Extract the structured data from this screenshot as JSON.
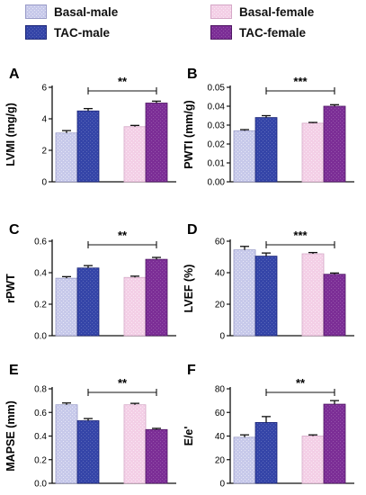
{
  "legend": {
    "items": [
      {
        "label": "Basal-male",
        "pattern": "basal-male"
      },
      {
        "label": "TAC-male",
        "pattern": "tac-male"
      },
      {
        "label": "Basal-female",
        "pattern": "basal-female"
      },
      {
        "label": "TAC-female",
        "pattern": "tac-female"
      }
    ]
  },
  "colors": {
    "basal_male": "#c7c9ea",
    "tac_male": "#3545a8",
    "basal_female": "#f3cfe6",
    "tac_female": "#7c2e96"
  },
  "chart_data": [
    {
      "panel": "A",
      "type": "bar",
      "ylabel": "LVMI (mg/g)",
      "ylim": [
        0,
        6
      ],
      "yticks": [
        "0",
        "2",
        "4",
        "6"
      ],
      "series": [
        "Basal-male",
        "TAC-male",
        "Basal-female",
        "TAC-female"
      ],
      "values": [
        3.1,
        4.5,
        3.5,
        5.0
      ],
      "errors": [
        0.15,
        0.15,
        0.08,
        0.12
      ],
      "significance": "**"
    },
    {
      "panel": "B",
      "type": "bar",
      "ylabel": "PWTI (mm/g)",
      "ylim": [
        0,
        0.05
      ],
      "yticks": [
        "0.00",
        "0.01",
        "0.02",
        "0.03",
        "0.04",
        "0.05"
      ],
      "series": [
        "Basal-male",
        "TAC-male",
        "Basal-female",
        "TAC-female"
      ],
      "values": [
        0.027,
        0.034,
        0.031,
        0.04
      ],
      "errors": [
        0.0006,
        0.001,
        0.0004,
        0.0008
      ],
      "significance": "***"
    },
    {
      "panel": "C",
      "type": "bar",
      "ylabel": "rPWT",
      "ylim": [
        0,
        0.6
      ],
      "yticks": [
        "0.0",
        "0.2",
        "0.4",
        "0.6"
      ],
      "series": [
        "Basal-male",
        "TAC-male",
        "Basal-female",
        "TAC-female"
      ],
      "values": [
        0.365,
        0.43,
        0.37,
        0.485
      ],
      "errors": [
        0.01,
        0.015,
        0.008,
        0.012
      ],
      "significance": "**"
    },
    {
      "panel": "D",
      "type": "bar",
      "ylabel": "LVEF (%)",
      "ylim": [
        0,
        60
      ],
      "yticks": [
        "0",
        "20",
        "40",
        "60"
      ],
      "series": [
        "Basal-male",
        "TAC-male",
        "Basal-female",
        "TAC-female"
      ],
      "values": [
        54.5,
        50.5,
        52.0,
        39.0
      ],
      "errors": [
        2.2,
        2.0,
        0.8,
        0.8
      ],
      "significance": "***"
    },
    {
      "panel": "E",
      "type": "bar",
      "ylabel": "MAPSE (mm)",
      "ylim": [
        0,
        0.8
      ],
      "yticks": [
        "0.0",
        "0.2",
        "0.4",
        "0.6",
        "0.8"
      ],
      "series": [
        "Basal-male",
        "TAC-male",
        "Basal-female",
        "TAC-female"
      ],
      "values": [
        0.665,
        0.53,
        0.665,
        0.455
      ],
      "errors": [
        0.015,
        0.018,
        0.012,
        0.01
      ],
      "significance": "**"
    },
    {
      "panel": "F",
      "type": "bar",
      "ylabel": "E/e'",
      "ylim": [
        0,
        80
      ],
      "yticks": [
        "0",
        "20",
        "40",
        "60",
        "80"
      ],
      "series": [
        "Basal-male",
        "TAC-male",
        "Basal-female",
        "TAC-female"
      ],
      "values": [
        39.0,
        51.5,
        40.0,
        67.0
      ],
      "errors": [
        2.0,
        5.0,
        1.0,
        3.0
      ],
      "significance": "**"
    }
  ]
}
